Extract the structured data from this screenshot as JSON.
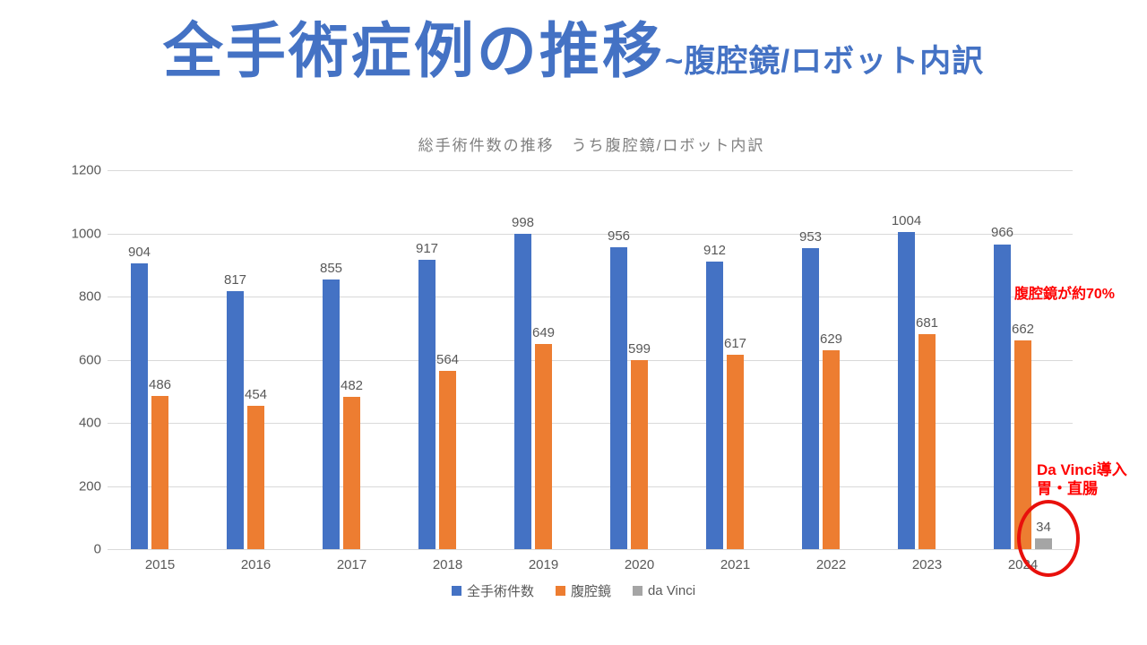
{
  "slide": {
    "title": "全手術症例の推移",
    "subtitle": "~腹腔鏡/ロボット内訳",
    "title_color": "#4472C4"
  },
  "chart_data": {
    "type": "bar",
    "title": "総手術件数の推移　うち腹腔鏡/ロボット内訳",
    "xlabel": "",
    "ylabel": "",
    "categories": [
      "2015",
      "2016",
      "2017",
      "2018",
      "2019",
      "2020",
      "2021",
      "2022",
      "2023",
      "2024"
    ],
    "series": [
      {
        "name": "全手術件数",
        "color": "#4472C4",
        "values": [
          904,
          817,
          855,
          917,
          998,
          956,
          912,
          953,
          1004,
          966
        ]
      },
      {
        "name": "腹腔鏡",
        "color": "#ED7D31",
        "values": [
          486,
          454,
          482,
          564,
          649,
          599,
          617,
          629,
          681,
          662
        ]
      },
      {
        "name": "da Vinci",
        "color": "#A5A5A5",
        "values": [
          null,
          null,
          null,
          null,
          null,
          null,
          null,
          null,
          null,
          34
        ]
      }
    ],
    "ylim": [
      0,
      1200
    ],
    "yticks": [
      0,
      200,
      400,
      600,
      800,
      1000,
      1200
    ],
    "grid": true,
    "data_labels": true,
    "legend_position": "bottom",
    "label_color": "#595959",
    "gridline_color": "#D9D9D9"
  },
  "annotations": {
    "laparoscope_share": {
      "text": "腹腔鏡が約70%",
      "color": "#FF0000"
    },
    "davinci_note": {
      "line1": "Da Vinci導入",
      "line2": "胃・直腸",
      "color": "#FF0000"
    },
    "highlight": {
      "shape": "red-ellipse",
      "target": "2024 da Vinci value 34"
    }
  }
}
